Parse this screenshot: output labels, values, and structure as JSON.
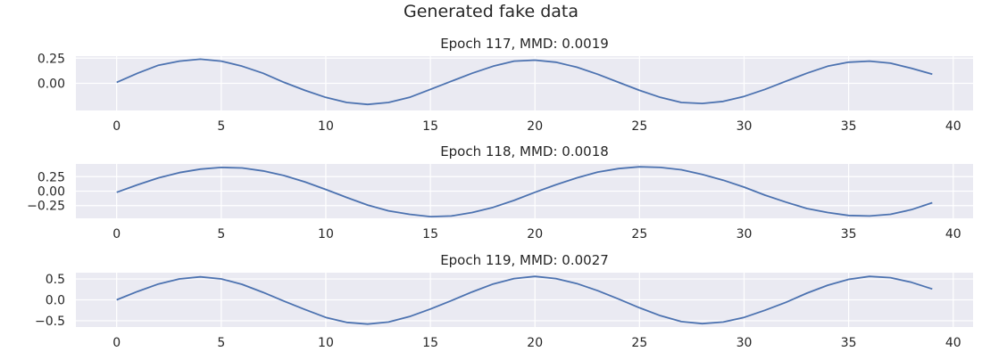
{
  "figure": {
    "title": "Generated fake data"
  },
  "chart_data": [
    {
      "type": "line",
      "title": "Epoch 117, MMD: 0.0019",
      "xlabel": "",
      "ylabel": "",
      "xlim": [
        -1.95,
        40.95
      ],
      "ylim": [
        -0.27,
        0.27
      ],
      "xticks": [
        0,
        5,
        10,
        15,
        20,
        25,
        30,
        35,
        40
      ],
      "yticks": [
        0.0,
        0.25
      ],
      "ytick_labels": [
        "0.00",
        "0.25"
      ],
      "grid": true,
      "colors": {
        "line": "#4c72b0",
        "background": "#eaeaf2",
        "grid": "#ffffff"
      },
      "series": [
        {
          "x": [
            0,
            1,
            2,
            3,
            4,
            5,
            6,
            7,
            8,
            9,
            10,
            11,
            12,
            13,
            14,
            15,
            16,
            17,
            18,
            19,
            20,
            21,
            22,
            23,
            24,
            25,
            26,
            27,
            28,
            29,
            30,
            31,
            32,
            33,
            34,
            35,
            36,
            37,
            38,
            39
          ],
          "y": [
            0.01,
            0.1,
            0.18,
            0.22,
            0.24,
            0.22,
            0.17,
            0.1,
            0.01,
            -0.07,
            -0.14,
            -0.19,
            -0.21,
            -0.19,
            -0.14,
            -0.06,
            0.02,
            0.1,
            0.17,
            0.22,
            0.23,
            0.21,
            0.16,
            0.09,
            0.01,
            -0.07,
            -0.14,
            -0.19,
            -0.2,
            -0.18,
            -0.13,
            -0.06,
            0.02,
            0.1,
            0.17,
            0.21,
            0.22,
            0.2,
            0.15,
            0.09
          ]
        }
      ]
    },
    {
      "type": "line",
      "title": "Epoch 118, MMD: 0.0018",
      "xlabel": "",
      "ylabel": "",
      "xlim": [
        -1.95,
        40.95
      ],
      "ylim": [
        -0.47,
        0.47
      ],
      "xticks": [
        0,
        5,
        10,
        15,
        20,
        25,
        30,
        35,
        40
      ],
      "yticks": [
        -0.25,
        0.0,
        0.25
      ],
      "ytick_labels": [
        "−0.25",
        "0.00",
        "0.25"
      ],
      "grid": true,
      "colors": {
        "line": "#4c72b0",
        "background": "#eaeaf2",
        "grid": "#ffffff"
      },
      "series": [
        {
          "x": [
            0,
            1,
            2,
            3,
            4,
            5,
            6,
            7,
            8,
            9,
            10,
            11,
            12,
            13,
            14,
            15,
            16,
            17,
            18,
            19,
            20,
            21,
            22,
            23,
            24,
            25,
            26,
            27,
            28,
            29,
            30,
            31,
            32,
            33,
            34,
            35,
            36,
            37,
            38,
            39
          ],
          "y": [
            -0.02,
            0.11,
            0.23,
            0.32,
            0.38,
            0.41,
            0.4,
            0.35,
            0.27,
            0.16,
            0.03,
            -0.11,
            -0.24,
            -0.34,
            -0.4,
            -0.44,
            -0.43,
            -0.37,
            -0.28,
            -0.16,
            -0.02,
            0.11,
            0.23,
            0.33,
            0.39,
            0.42,
            0.41,
            0.37,
            0.29,
            0.19,
            0.07,
            -0.07,
            -0.19,
            -0.3,
            -0.37,
            -0.42,
            -0.43,
            -0.4,
            -0.32,
            -0.2
          ]
        }
      ]
    },
    {
      "type": "line",
      "title": "Epoch 119, MMD: 0.0027",
      "xlabel": "",
      "ylabel": "",
      "xlim": [
        -1.95,
        40.95
      ],
      "ylim": [
        -0.65,
        0.65
      ],
      "xticks": [
        0,
        5,
        10,
        15,
        20,
        25,
        30,
        35,
        40
      ],
      "yticks": [
        -0.5,
        0.0,
        0.5
      ],
      "ytick_labels": [
        "−0.5",
        "0.0",
        "0.5"
      ],
      "grid": true,
      "colors": {
        "line": "#4c72b0",
        "background": "#eaeaf2",
        "grid": "#ffffff"
      },
      "series": [
        {
          "x": [
            0,
            1,
            2,
            3,
            4,
            5,
            6,
            7,
            8,
            9,
            10,
            11,
            12,
            13,
            14,
            15,
            16,
            17,
            18,
            19,
            20,
            21,
            22,
            23,
            24,
            25,
            26,
            27,
            28,
            29,
            30,
            31,
            32,
            33,
            34,
            35,
            36,
            37,
            38,
            39
          ],
          "y": [
            0.0,
            0.2,
            0.38,
            0.5,
            0.55,
            0.5,
            0.37,
            0.18,
            -0.03,
            -0.23,
            -0.42,
            -0.54,
            -0.58,
            -0.53,
            -0.4,
            -0.22,
            -0.02,
            0.19,
            0.38,
            0.51,
            0.56,
            0.51,
            0.39,
            0.22,
            0.02,
            -0.19,
            -0.38,
            -0.52,
            -0.57,
            -0.53,
            -0.42,
            -0.25,
            -0.06,
            0.16,
            0.35,
            0.49,
            0.56,
            0.53,
            0.42,
            0.26
          ]
        }
      ]
    }
  ]
}
